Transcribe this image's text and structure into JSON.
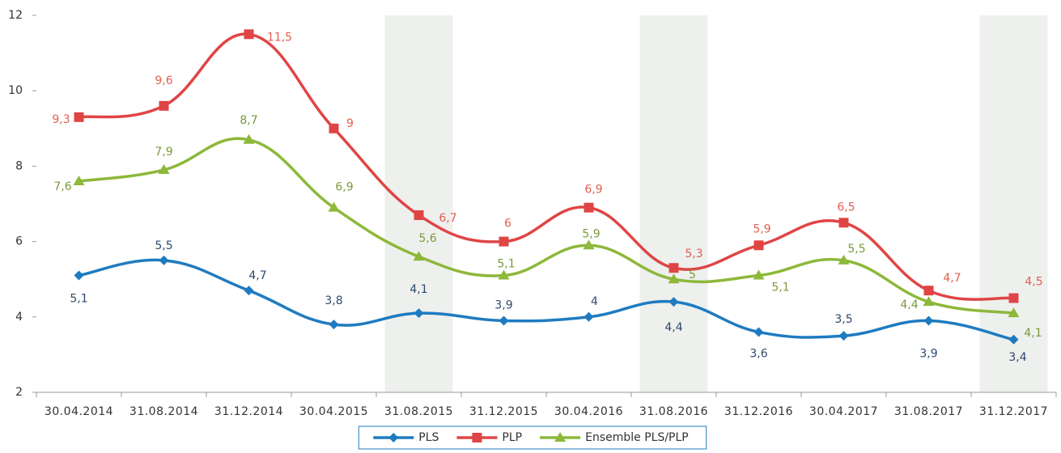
{
  "chart_data": {
    "type": "line",
    "categories": [
      "30.04.2014",
      "31.08.2014",
      "31.12.2014",
      "30.04.2015",
      "31.08.2015",
      "31.12.2015",
      "30.04.2016",
      "31.08.2016",
      "31.12.2016",
      "30.04.2017",
      "31.08.2017",
      "31.12.2017"
    ],
    "series": [
      {
        "name": "PLS",
        "color": "#1f7bc0",
        "label_color": "#2e4a6b",
        "marker": "diamond",
        "values": [
          5.1,
          5.5,
          4.7,
          3.8,
          4.1,
          3.9,
          4,
          4.4,
          3.6,
          3.5,
          3.9,
          3.4
        ],
        "value_labels": [
          "5,1",
          "5,5",
          "4,7",
          "3,8",
          "4,1",
          "3,9",
          "4",
          "4,4",
          "3,6",
          "3,5",
          "3,9",
          "3,4"
        ]
      },
      {
        "name": "PLP",
        "color": "#e04545",
        "label_color": "#e0604f",
        "marker": "square",
        "values": [
          9.3,
          9.6,
          11.5,
          9,
          6.7,
          6,
          6.9,
          5.3,
          5.9,
          6.5,
          4.7,
          4.5
        ],
        "value_labels": [
          "9,3",
          "9,6",
          "11,5",
          "9",
          "6,7",
          "6",
          "6,9",
          "5,3",
          "5,9",
          "6,5",
          "4,7",
          "4,5"
        ]
      },
      {
        "name": "Ensemble PLS/PLP",
        "color": "#8db83a",
        "label_color": "#7a9a3a",
        "marker": "triangle",
        "values": [
          7.6,
          7.9,
          8.7,
          6.9,
          5.6,
          5.1,
          5.9,
          5,
          5.1,
          5.5,
          4.4,
          4.1
        ],
        "value_labels": [
          "7,6",
          "7,9",
          "8,7",
          "6,9",
          "5,6",
          "5,1",
          "5,9",
          "5",
          "5,1",
          "5,5",
          "4,4",
          "4,1"
        ]
      }
    ],
    "ylim": [
      2,
      12
    ],
    "yticks": [
      2,
      4,
      6,
      8,
      10,
      12
    ],
    "legend": "bottom"
  }
}
